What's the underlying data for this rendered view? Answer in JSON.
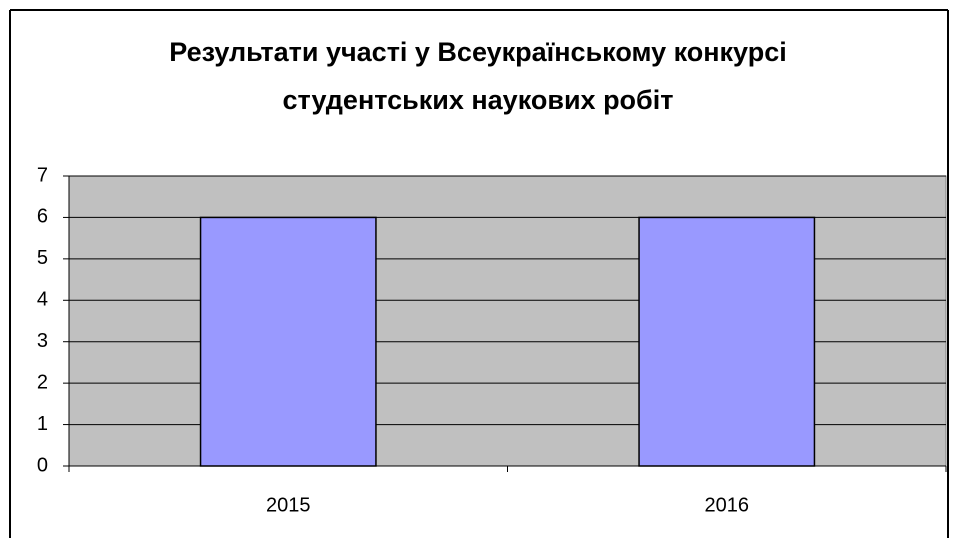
{
  "chart_data": {
    "type": "bar",
    "title": "Результати участі у Всеукраїнському конкурсі студентських наукових робіт",
    "categories": [
      "2015",
      "2016"
    ],
    "values": [
      6,
      6
    ],
    "color": "#9999ff",
    "plot_background": "#c0c0c0",
    "ylim": [
      0,
      7
    ],
    "yticks": [
      0,
      1,
      2,
      3,
      4,
      5,
      6,
      7
    ],
    "grid": true
  }
}
